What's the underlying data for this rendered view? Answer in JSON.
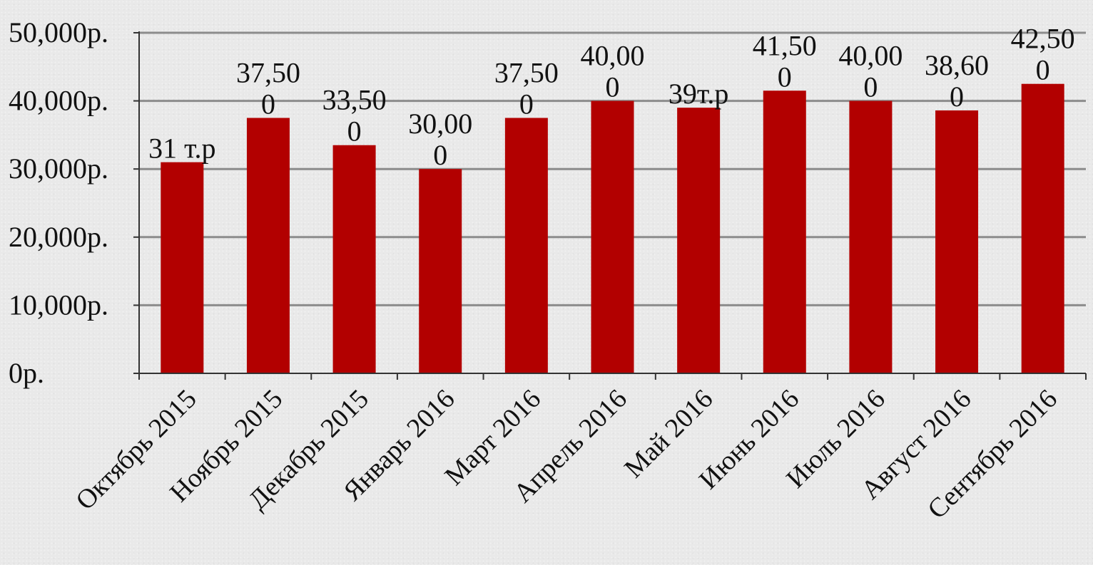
{
  "chart_data": {
    "type": "bar",
    "title": "",
    "xlabel": "",
    "ylabel": "",
    "categories": [
      "Октябрь 2015",
      "Ноябрь 2015",
      "Декабрь 2015",
      "Январь 2016",
      "Март 2016",
      "Апрель 2016",
      "Май 2016",
      "Июнь 2016",
      "Июль 2016",
      "Август 2016",
      "Сентябрь 2016"
    ],
    "values": [
      31000,
      37500,
      33500,
      30000,
      37500,
      40000,
      39000,
      41500,
      40000,
      38600,
      42500
    ],
    "data_labels": [
      [
        "31 т.р"
      ],
      [
        "37,50",
        "0"
      ],
      [
        "33,50",
        "0"
      ],
      [
        "30,00",
        "0"
      ],
      [
        "37,50",
        "0"
      ],
      [
        "40,00",
        "0"
      ],
      [
        "39т.р"
      ],
      [
        "41,50",
        "0"
      ],
      [
        "40,00",
        "0"
      ],
      [
        "38,60",
        "0"
      ],
      [
        "42,50",
        "0"
      ]
    ],
    "ylim": [
      0,
      50000
    ],
    "yticks": [
      0,
      10000,
      20000,
      30000,
      40000,
      50000
    ],
    "ytick_labels": [
      "0р.",
      "10,000р.",
      "20,000р.",
      "30,000р.",
      "40,000р.",
      "50,000р."
    ],
    "grid": true,
    "legend": "none",
    "bar_color": "#b20000",
    "grid_color": "#8c8c8c",
    "axis_color": "#333333"
  }
}
